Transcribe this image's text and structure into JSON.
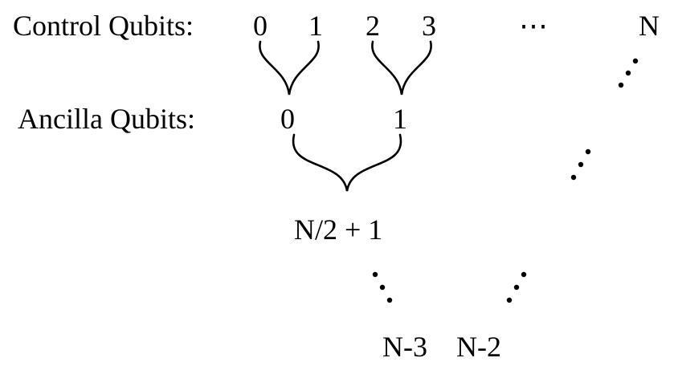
{
  "row_labels": {
    "control": "Control Qubits:",
    "ancilla": "Ancilla Qubits:"
  },
  "control_qubits": [
    "0",
    "1",
    "2",
    "3",
    "N"
  ],
  "ellipsis_symbol": "⋯",
  "ancilla_qubits": [
    "0",
    "1"
  ],
  "merged_node": "N/2 + 1",
  "bottom_nodes": [
    "N-3",
    "N-2"
  ]
}
